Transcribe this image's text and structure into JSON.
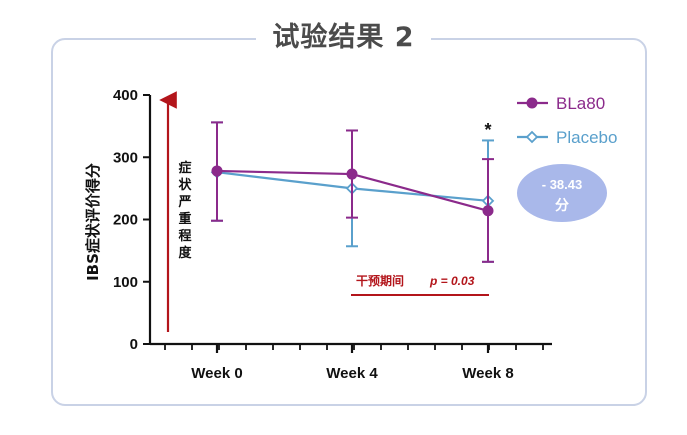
{
  "page": {
    "title": "试验结果 2"
  },
  "annotations": {
    "severity_label": "症状严重程度",
    "severity_arrow_color": "#b3151b",
    "significance_marker": "*",
    "period_label": "干预期间",
    "p_value_label": "p = 0.03",
    "difference_line1": "- 38.43",
    "difference_line2": "分",
    "difference_badge_color": "#a9b8ea"
  },
  "chart_data": {
    "type": "line",
    "x": [
      "Week 0",
      "Week 4",
      "Week 8"
    ],
    "ylabel": "IBS症状评价得分",
    "ylim": [
      0,
      400
    ],
    "yticks": [
      "0",
      "100",
      "200",
      "300",
      "400"
    ],
    "legend_position": "top-right",
    "series": [
      {
        "name": "BLa80",
        "color": "#8b2a8b",
        "marker": "circle",
        "values": [
          278,
          273,
          214
        ],
        "err_low": [
          198,
          203,
          132
        ],
        "err_high": [
          356,
          343,
          297
        ]
      },
      {
        "name": "Placebo",
        "color": "#5aa0cc",
        "marker": "diamond",
        "values": [
          276,
          250,
          230
        ],
        "err_low": [
          198,
          157,
          132
        ],
        "err_high": [
          356,
          343,
          327
        ]
      }
    ]
  }
}
